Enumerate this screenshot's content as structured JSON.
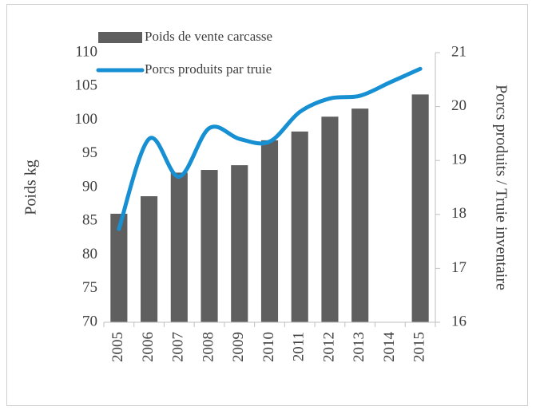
{
  "chart_data": {
    "type": "bar-line",
    "y_label": "Poids kg",
    "y2_label": "Porcs produits / Truie inventaire",
    "categories": [
      "2005",
      "2006",
      "2007",
      "2008",
      "2009",
      "2010",
      "2011",
      "2012",
      "2013",
      "2014",
      "2015"
    ],
    "series": [
      {
        "name": "Poids de vente carcasse",
        "type": "bar",
        "color": "#5f5f5f",
        "axis": "y",
        "values": [
          86.1,
          88.7,
          92.2,
          92.6,
          93.3,
          97.0,
          98.3,
          100.5,
          101.7,
          null,
          103.8
        ]
      },
      {
        "name": "Porcs produits par truie",
        "type": "line",
        "color": "#1690d2",
        "axis": "y2",
        "smooth": true,
        "values": [
          17.73,
          19.4,
          18.7,
          19.6,
          19.4,
          19.35,
          19.9,
          20.15,
          20.2,
          20.45,
          20.7
        ]
      }
    ],
    "ylim": [
      70,
      110
    ],
    "yticks": [
      70,
      75,
      80,
      85,
      90,
      95,
      100,
      105,
      110
    ],
    "y2lim": [
      16,
      21
    ],
    "y2ticks": [
      16,
      17,
      18,
      19,
      20,
      21
    ],
    "grid": false,
    "legend": "top-left"
  }
}
